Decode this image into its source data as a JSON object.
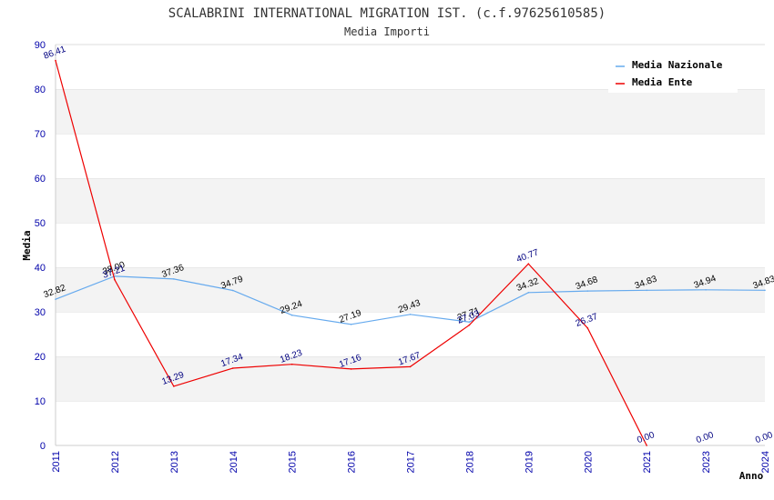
{
  "chart_data": {
    "type": "line",
    "title": "SCALABRINI INTERNATIONAL MIGRATION IST. (c.f.97625610585)",
    "subtitle": "Media Importi",
    "xlabel": "Anno",
    "ylabel": "Media",
    "ylim": [
      0,
      90
    ],
    "yticks": [
      "0",
      "10",
      "20",
      "30",
      "40",
      "50",
      "60",
      "70",
      "80",
      "90"
    ],
    "categories": [
      "2011",
      "2012",
      "2013",
      "2014",
      "2015",
      "2016",
      "2017",
      "2018",
      "2019",
      "2020",
      "2021",
      "2023",
      "2024"
    ],
    "grid": "horizontal alternating bands",
    "legend_position": "top-right",
    "series": [
      {
        "name": "Media Nazionale",
        "color": "#66aaee",
        "values": [
          32.82,
          38.0,
          37.36,
          34.79,
          29.24,
          27.19,
          29.43,
          27.71,
          34.32,
          34.68,
          34.83,
          34.94,
          34.83
        ],
        "labels": [
          "32.82",
          "38.00",
          "37.36",
          "34.79",
          "29.24",
          "27.19",
          "29.43",
          "27.71",
          "34.32",
          "34.68",
          "34.83",
          "34.94",
          "34.83"
        ]
      },
      {
        "name": "Media Ente",
        "color": "#ee0000",
        "values": [
          86.41,
          37.21,
          13.29,
          17.34,
          18.23,
          17.16,
          17.67,
          27.03,
          40.77,
          26.37,
          0.0,
          null,
          null
        ],
        "labels": [
          "86.41",
          "37.21",
          "13.29",
          "17.34",
          "18.23",
          "17.16",
          "17.67",
          "27.03",
          "40.77",
          "26.37",
          "0.00",
          "0.00",
          "0.00"
        ]
      }
    ]
  }
}
